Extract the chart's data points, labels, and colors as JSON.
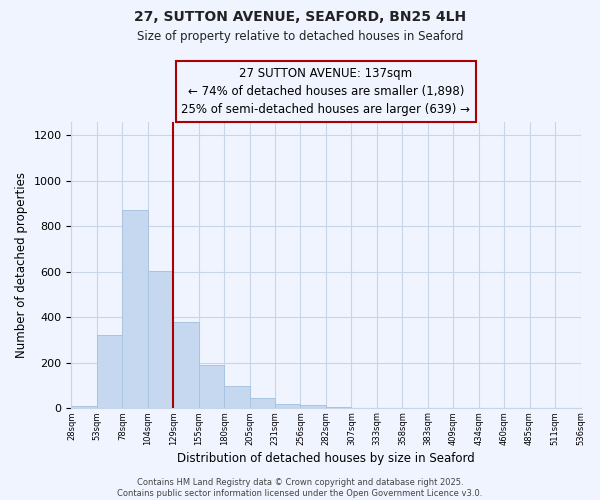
{
  "title": "27, SUTTON AVENUE, SEAFORD, BN25 4LH",
  "subtitle": "Size of property relative to detached houses in Seaford",
  "bar_values": [
    10,
    320,
    870,
    605,
    380,
    190,
    100,
    45,
    20,
    15,
    5,
    0,
    0,
    0,
    0,
    0,
    0,
    0,
    0,
    0
  ],
  "bin_labels": [
    "28sqm",
    "53sqm",
    "78sqm",
    "104sqm",
    "129sqm",
    "155sqm",
    "180sqm",
    "205sqm",
    "231sqm",
    "256sqm",
    "282sqm",
    "307sqm",
    "333sqm",
    "358sqm",
    "383sqm",
    "409sqm",
    "434sqm",
    "460sqm",
    "485sqm",
    "511sqm",
    "536sqm"
  ],
  "bar_color": "#c5d8f0",
  "bar_edge_color": "#a8c4e0",
  "grid_color": "#c8d4e8",
  "background_color": "#f0f4ff",
  "vline_bar_index": 3,
  "vline_color": "#aa0000",
  "ylabel": "Number of detached properties",
  "xlabel": "Distribution of detached houses by size in Seaford",
  "ylim": [
    0,
    1260
  ],
  "yticks": [
    0,
    200,
    400,
    600,
    800,
    1000,
    1200
  ],
  "annotation_line1": "27 SUTTON AVENUE: 137sqm",
  "annotation_line2": "← 74% of detached houses are smaller (1,898)",
  "annotation_line3": "25% of semi-detached houses are larger (639) →",
  "footnote1": "Contains HM Land Registry data © Crown copyright and database right 2025.",
  "footnote2": "Contains public sector information licensed under the Open Government Licence v3.0."
}
